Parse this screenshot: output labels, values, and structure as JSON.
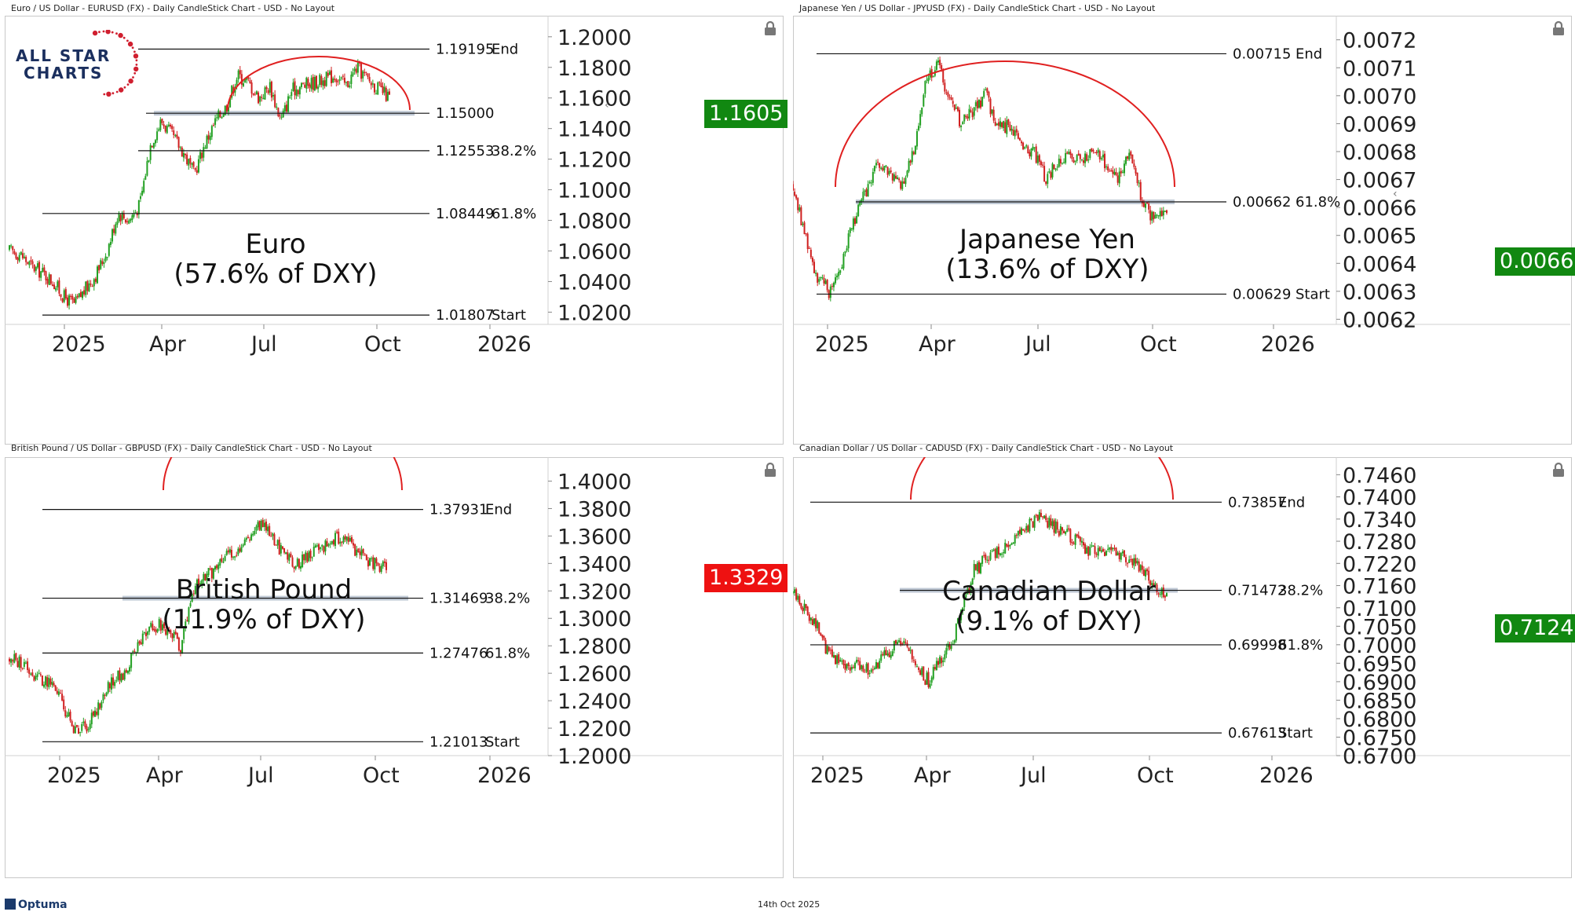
{
  "footer": {
    "date": "14th Oct 2025",
    "brand": "Optuma"
  },
  "logo": {
    "line1": "ALL STAR",
    "line2": "CHARTS"
  },
  "colors": {
    "arc": "#e02020",
    "up": "#22a022",
    "down": "#d02020",
    "support_band": "#aab6c6",
    "badge_green": "#118811",
    "badge_red": "#ee1111"
  },
  "panels": [
    {
      "id": "eur",
      "header": "Euro / US Dollar - EURUSD (FX) - Daily CandleStick Chart - USD - No Layout",
      "label_line1": "Euro",
      "label_line2": "(57.6% of DXY)",
      "price_badge": "1.1605",
      "badge_color": "green",
      "ymin": 1.0125,
      "ymax": 1.2035,
      "yticks": [
        "1.2000",
        "1.1800",
        "1.1600",
        "1.1400",
        "1.1200",
        "1.1000",
        "1.0800",
        "1.0600",
        "1.0400",
        "1.0200"
      ],
      "xticks": [
        "2025",
        "Apr",
        "Jul",
        "Oct",
        "2026"
      ],
      "levels": [
        {
          "value": 1.19195,
          "price": "1.19195",
          "tag": "End"
        },
        {
          "value": 1.15,
          "price": "1.15000",
          "tag": ""
        },
        {
          "value": 1.12553,
          "price": "1.12553",
          "tag": "38.2%"
        },
        {
          "value": 1.08449,
          "price": "1.08449",
          "tag": "61.8%"
        },
        {
          "value": 1.01807,
          "price": "1.01807",
          "tag": "Start"
        }
      ]
    },
    {
      "id": "jpy",
      "header": "Japanese Yen / US Dollar - JPYUSD (FX) - Daily CandleStick Chart - USD - No Layout",
      "label_line1": "Japanese Yen",
      "label_line2": "(13.6% of DXY)",
      "price_badge": "0.0066",
      "badge_color": "green",
      "ymin": 0.00619,
      "ymax": 0.00723,
      "yticks": [
        "0.0072",
        "0.0071",
        "0.0070",
        "0.0069",
        "0.0068",
        "0.0067",
        "0.0066",
        "0.0065",
        "0.0064",
        "0.0063",
        "0.0062"
      ],
      "xticks": [
        "2025",
        "Apr",
        "Jul",
        "Oct",
        "2026"
      ],
      "levels": [
        {
          "value": 0.00715,
          "price": "0.00715",
          "tag": "End"
        },
        {
          "value": 0.00662,
          "price": "0.00662",
          "tag": "61.8%"
        },
        {
          "value": 0.00629,
          "price": "0.00629",
          "tag": "Start"
        }
      ]
    },
    {
      "id": "gbp",
      "header": "British Pound / US Dollar - GBPUSD (FX) - Daily CandleStick Chart - USD - No Layout",
      "label_line1": "British Pound",
      "label_line2": "(11.9% of DXY)",
      "price_badge": "1.3329",
      "badge_color": "red",
      "ymin": 1.2,
      "ymax": 1.406,
      "yticks": [
        "1.4000",
        "1.3800",
        "1.3600",
        "1.3400",
        "1.3200",
        "1.3000",
        "1.2800",
        "1.2600",
        "1.2400",
        "1.2200",
        "1.2000"
      ],
      "xticks": [
        "2025",
        "Apr",
        "Jul",
        "Oct",
        "2026"
      ],
      "levels": [
        {
          "value": 1.37931,
          "price": "1.37931",
          "tag": "End"
        },
        {
          "value": 1.31469,
          "price": "1.31469",
          "tag": "38.2%"
        },
        {
          "value": 1.27476,
          "price": "1.27476",
          "tag": "61.8%"
        },
        {
          "value": 1.21013,
          "price": "1.21013",
          "tag": "Start"
        }
      ]
    },
    {
      "id": "cad",
      "header": "Canadian Dollar / US Dollar - CADUSD (FX) - Daily CandleStick Chart - USD - No Layout",
      "label_line1": "Canadian Dollar",
      "label_line2": "(9.1% of DXY)",
      "price_badge": "0.7124",
      "badge_color": "green",
      "ymin": 0.67,
      "ymax": 0.7465,
      "yticks": [
        "0.7460",
        "0.7400",
        "0.7340",
        "0.7280",
        "0.7220",
        "0.7160",
        "0.7100",
        "0.7050",
        "0.7000",
        "0.6950",
        "0.6900",
        "0.6850",
        "0.6800",
        "0.6750",
        "0.6700"
      ],
      "xticks": [
        "2025",
        "Apr",
        "Jul",
        "Oct",
        "2026"
      ],
      "levels": [
        {
          "value": 0.73857,
          "price": "0.73857",
          "tag": "End"
        },
        {
          "value": 0.71472,
          "price": "0.71472",
          "tag": "38.2%"
        },
        {
          "value": 0.69998,
          "price": "0.69998",
          "tag": "61.8%"
        },
        {
          "value": 0.67613,
          "price": "0.67613",
          "tag": "Start"
        }
      ]
    }
  ],
  "chart_data": [
    {
      "type": "candlestick",
      "title": "Euro / US Dollar - EURUSD (FX) - Daily CandleStick Chart - USD - No Layout",
      "x": [
        "2024-11",
        "2024-12",
        "2025-01",
        "2025-02",
        "2025-03",
        "2025-04",
        "2025-05",
        "2025-06",
        "2025-07",
        "2025-08",
        "2025-09",
        "2025-10"
      ],
      "series": [
        {
          "values": [
            1.06,
            1.045,
            1.03,
            1.04,
            1.08,
            1.135,
            1.125,
            1.155,
            1.17,
            1.165,
            1.175,
            1.1605
          ]
        }
      ],
      "ylim": [
        1.0125,
        1.2035
      ],
      "horizontal_levels": [
        1.19195,
        1.15,
        1.12553,
        1.08449,
        1.01807
      ]
    },
    {
      "type": "candlestick",
      "title": "Japanese Yen / US Dollar - JPYUSD (FX) - Daily CandleStick Chart - USD - No Layout",
      "x": [
        "2024-11",
        "2024-12",
        "2025-01",
        "2025-02",
        "2025-03",
        "2025-04",
        "2025-05",
        "2025-06",
        "2025-07",
        "2025-08",
        "2025-09",
        "2025-10"
      ],
      "series": [
        {
          "values": [
            0.00665,
            0.0064,
            0.00633,
            0.00655,
            0.0067,
            0.00705,
            0.0069,
            0.00695,
            0.00678,
            0.00677,
            0.0068,
            0.0066
          ]
        }
      ],
      "ylim": [
        0.00619,
        0.00723
      ],
      "horizontal_levels": [
        0.00715,
        0.00662,
        0.00629
      ]
    },
    {
      "type": "candlestick",
      "title": "British Pound / US Dollar - GBPUSD (FX) - Daily CandleStick Chart - USD - No Layout",
      "x": [
        "2024-11",
        "2024-12",
        "2025-01",
        "2025-02",
        "2025-03",
        "2025-04",
        "2025-05",
        "2025-06",
        "2025-07",
        "2025-08",
        "2025-09",
        "2025-10"
      ],
      "series": [
        {
          "values": [
            1.27,
            1.255,
            1.22,
            1.255,
            1.29,
            1.32,
            1.335,
            1.365,
            1.345,
            1.345,
            1.355,
            1.3329
          ]
        }
      ],
      "ylim": [
        1.2,
        1.406
      ],
      "horizontal_levels": [
        1.37931,
        1.31469,
        1.27476,
        1.21013
      ]
    },
    {
      "type": "candlestick",
      "title": "Canadian Dollar / US Dollar - CADUSD (FX) - Daily CandleStick Chart - USD - No Layout",
      "x": [
        "2024-11",
        "2024-12",
        "2025-01",
        "2025-02",
        "2025-03",
        "2025-04",
        "2025-05",
        "2025-06",
        "2025-07",
        "2025-08",
        "2025-09",
        "2025-10"
      ],
      "series": [
        {
          "values": [
            0.715,
            0.695,
            0.694,
            0.7,
            0.692,
            0.72,
            0.723,
            0.733,
            0.732,
            0.726,
            0.724,
            0.7124
          ]
        }
      ],
      "ylim": [
        0.67,
        0.7465
      ],
      "horizontal_levels": [
        0.73857,
        0.71472,
        0.69998,
        0.67613
      ]
    }
  ]
}
